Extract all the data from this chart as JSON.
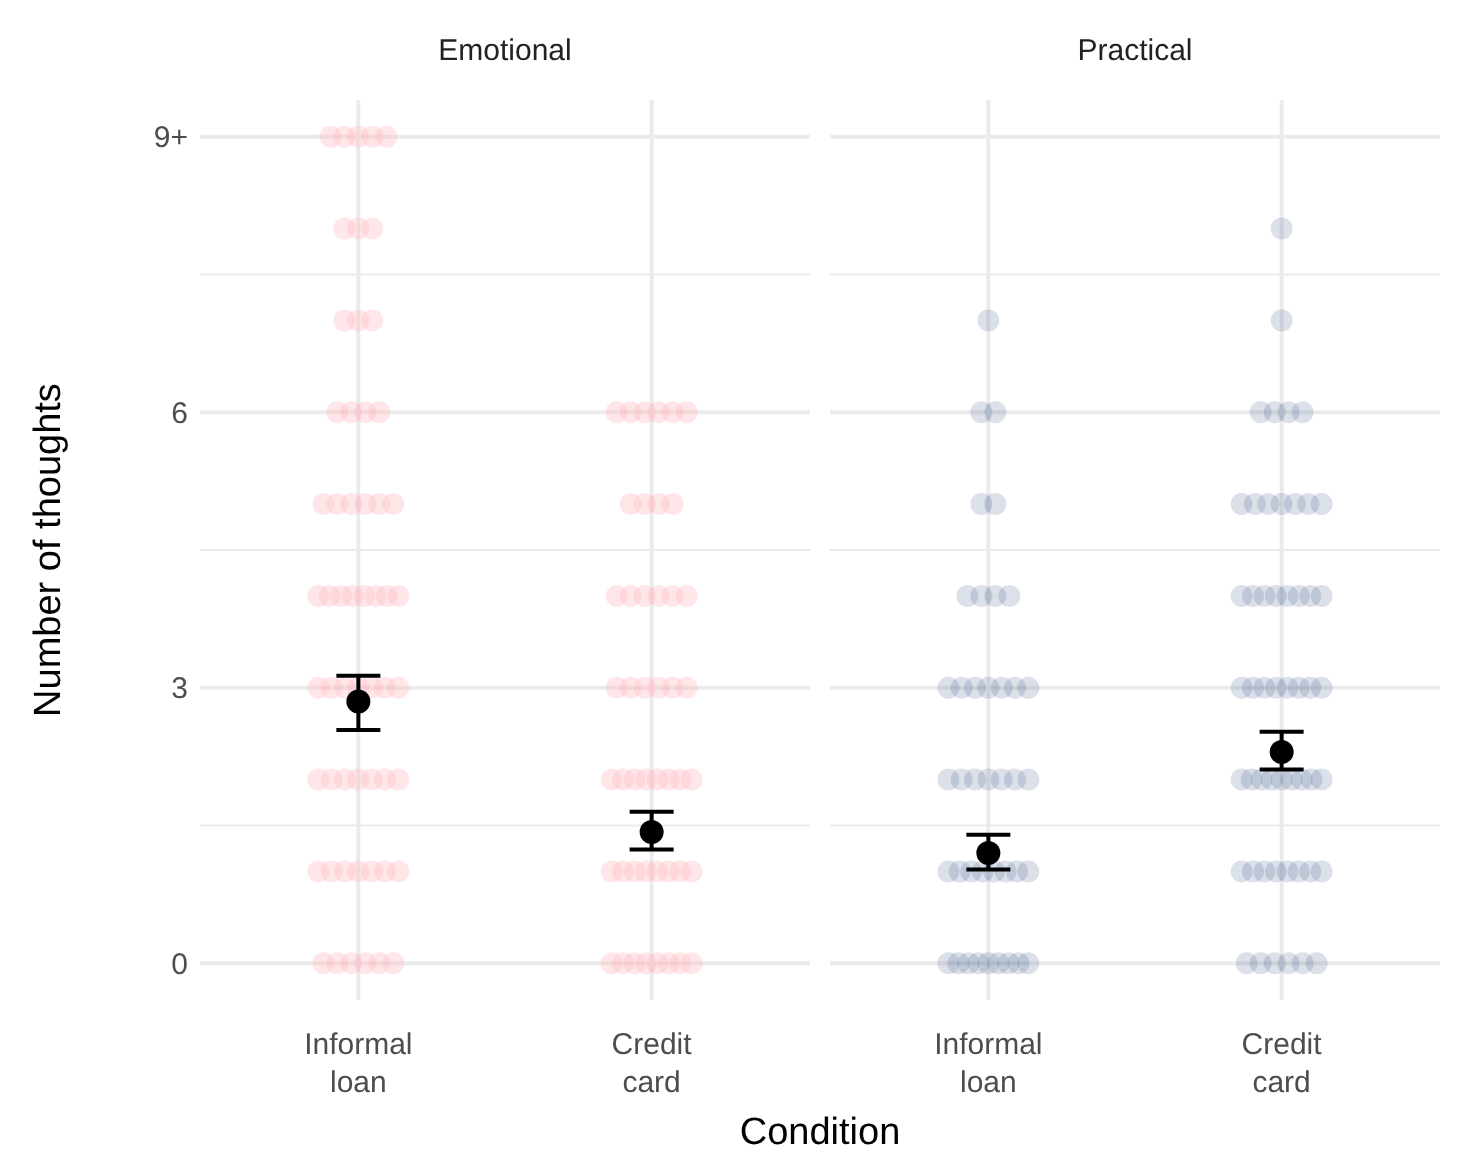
{
  "chart_data": [
    {
      "type": "scatter",
      "title": "Emotional",
      "xlabel": "Condition",
      "ylabel": "Number of thoughts",
      "categories": [
        "Informal loan",
        "Credit card"
      ],
      "ylim": [
        -0.4,
        9.4
      ],
      "yticks": [
        0,
        {
          "value": 1.5,
          "label": null
        },
        3,
        {
          "value": 4.5,
          "label": null
        },
        6,
        {
          "value": 7.5,
          "label": null
        },
        {
          "value": 9,
          "label": "9+"
        }
      ],
      "grid": true,
      "marker": "circle",
      "series": [
        {
          "color": "#ffb6c1",
          "x": [
            "Informal loan",
            "Informal loan",
            "Informal loan",
            "Informal loan",
            "Informal loan",
            "Informal loan",
            "Informal loan",
            "Informal loan",
            "Informal loan",
            "Informal loan",
            "Informal loan",
            "Informal loan",
            "Informal loan",
            "Informal loan",
            "Informal loan",
            "Informal loan",
            "Informal loan",
            "Informal loan",
            "Informal loan",
            "Informal loan",
            "Informal loan",
            "Informal loan",
            "Informal loan",
            "Informal loan",
            "Informal loan",
            "Informal loan",
            "Informal loan",
            "Informal loan",
            "Informal loan",
            "Informal loan",
            "Informal loan",
            "Informal loan",
            "Informal loan",
            "Informal loan",
            "Informal loan",
            "Informal loan",
            "Informal loan",
            "Informal loan",
            "Informal loan",
            "Informal loan",
            "Informal loan",
            "Informal loan",
            "Informal loan",
            "Informal loan",
            "Informal loan",
            "Informal loan",
            "Informal loan",
            "Informal loan",
            "Informal loan",
            "Informal loan",
            "Informal loan",
            "Informal loan",
            "Informal loan",
            "Informal loan",
            "Informal loan",
            "Informal loan",
            "Credit card",
            "Credit card",
            "Credit card",
            "Credit card",
            "Credit card",
            "Credit card",
            "Credit card",
            "Credit card",
            "Credit card",
            "Credit card",
            "Credit card",
            "Credit card",
            "Credit card",
            "Credit card",
            "Credit card",
            "Credit card",
            "Credit card",
            "Credit card",
            "Credit card",
            "Credit card",
            "Credit card",
            "Credit card",
            "Credit card",
            "Credit card",
            "Credit card",
            "Credit card",
            "Credit card",
            "Credit card",
            "Credit card",
            "Credit card",
            "Credit card",
            "Credit card",
            "Credit card",
            "Credit card",
            "Credit card",
            "Credit card",
            "Credit card",
            "Credit card",
            "Credit card",
            "Credit card",
            "Credit card",
            "Credit card",
            "Credit card",
            "Credit card",
            "Credit card",
            "Credit card"
          ],
          "values": [
            9,
            9,
            9,
            9,
            9,
            8,
            8,
            8,
            7,
            7,
            7,
            6,
            6,
            6,
            6,
            5,
            5,
            5,
            5,
            5,
            5,
            4,
            4,
            4,
            4,
            4,
            4,
            4,
            4,
            3,
            3,
            3,
            3,
            3,
            3,
            3,
            2,
            2,
            2,
            2,
            2,
            2,
            2,
            1,
            1,
            1,
            1,
            1,
            1,
            1,
            0,
            0,
            0,
            0,
            0,
            0,
            6,
            6,
            6,
            6,
            6,
            6,
            5,
            5,
            5,
            5,
            4,
            4,
            4,
            4,
            4,
            4,
            3,
            3,
            3,
            3,
            3,
            3,
            2,
            2,
            2,
            2,
            2,
            2,
            2,
            2,
            1,
            1,
            1,
            1,
            1,
            1,
            1,
            1,
            0,
            0,
            0,
            0,
            0,
            0,
            0,
            0
          ]
        },
        {
          "color": "#000000",
          "x": [
            "Informal loan",
            "Credit card"
          ],
          "values": [
            2.85,
            1.43
          ],
          "errors": [
            [
              2.54,
              3.13
            ],
            [
              1.24,
              1.65
            ]
          ]
        }
      ]
    },
    {
      "type": "scatter",
      "title": "Practical",
      "categories": [
        "Informal loan",
        "Credit card"
      ],
      "ylim": [
        -0.4,
        9.4
      ],
      "yticks": [
        0,
        {
          "value": 1.5,
          "label": null
        },
        3,
        {
          "value": 4.5,
          "label": null
        },
        6,
        {
          "value": 7.5,
          "label": null
        },
        9
      ],
      "tick_labels": "x",
      "grid": true,
      "marker": "circle",
      "series": [
        {
          "color": "#4a6490",
          "x": [
            "Informal loan",
            "Informal loan",
            "Informal loan",
            "Informal loan",
            "Informal loan",
            "Informal loan",
            "Informal loan",
            "Informal loan",
            "Informal loan",
            "Informal loan",
            "Informal loan",
            "Informal loan",
            "Informal loan",
            "Informal loan",
            "Informal loan",
            "Informal loan",
            "Informal loan",
            "Informal loan",
            "Informal loan",
            "Informal loan",
            "Informal loan",
            "Informal loan",
            "Informal loan",
            "Informal loan",
            "Informal loan",
            "Informal loan",
            "Informal loan",
            "Informal loan",
            "Informal loan",
            "Informal loan",
            "Informal loan",
            "Informal loan",
            "Informal loan",
            "Informal loan",
            "Informal loan",
            "Informal loan",
            "Informal loan",
            "Informal loan",
            "Informal loan",
            "Informal loan",
            "Credit card",
            "Credit card",
            "Credit card",
            "Credit card",
            "Credit card",
            "Credit card",
            "Credit card",
            "Credit card",
            "Credit card",
            "Credit card",
            "Credit card",
            "Credit card",
            "Credit card",
            "Credit card",
            "Credit card",
            "Credit card",
            "Credit card",
            "Credit card",
            "Credit card",
            "Credit card",
            "Credit card",
            "Credit card",
            "Credit card",
            "Credit card",
            "Credit card",
            "Credit card",
            "Credit card",
            "Credit card",
            "Credit card",
            "Credit card",
            "Credit card",
            "Credit card",
            "Credit card",
            "Credit card",
            "Credit card",
            "Credit card",
            "Credit card",
            "Credit card",
            "Credit card",
            "Credit card",
            "Credit card",
            "Credit card",
            "Credit card",
            "Credit card",
            "Credit card",
            "Credit card",
            "Credit card",
            "Credit card",
            "Credit card",
            "Credit card",
            "Credit card",
            "Credit card"
          ],
          "values": [
            7,
            6,
            6,
            5,
            5,
            4,
            4,
            4,
            4,
            3,
            3,
            3,
            3,
            3,
            3,
            3,
            2,
            2,
            2,
            2,
            2,
            2,
            2,
            1,
            1,
            1,
            1,
            1,
            1,
            1,
            1,
            0,
            0,
            0,
            0,
            0,
            0,
            0,
            0,
            0,
            8,
            7,
            6,
            6,
            6,
            6,
            5,
            5,
            5,
            5,
            5,
            5,
            5,
            4,
            4,
            4,
            4,
            4,
            4,
            4,
            4,
            3,
            3,
            3,
            3,
            3,
            3,
            3,
            3,
            2,
            2,
            2,
            2,
            2,
            2,
            2,
            2,
            2,
            1,
            1,
            1,
            1,
            1,
            1,
            1,
            1,
            0,
            0,
            0,
            0,
            0,
            0
          ]
        },
        {
          "color": "#000000",
          "x": [
            "Informal loan",
            "Credit card"
          ],
          "values": [
            1.2,
            2.3
          ],
          "errors": [
            [
              1.02,
              1.4
            ],
            [
              2.11,
              2.52
            ]
          ]
        }
      ]
    }
  ]
}
